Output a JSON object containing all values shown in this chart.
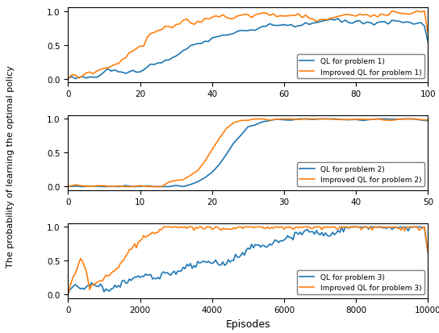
{
  "blue_color": "#1f77b4",
  "orange_color": "#ff7f0e",
  "ylabel": "The probability of learning the optimal policy",
  "xlabel": "Episodes",
  "subplot1": {
    "xlim": [
      0,
      100
    ],
    "xticks": [
      0,
      20,
      40,
      60,
      80,
      100
    ],
    "ylim": [
      -0.05,
      1.05
    ],
    "yticks": [
      0.0,
      0.5,
      1.0
    ],
    "legend1": "QL for problem 1)",
    "legend2": "Improved QL for problem 1)"
  },
  "subplot2": {
    "xlim": [
      0,
      50
    ],
    "xticks": [
      0,
      10,
      20,
      30,
      40,
      50
    ],
    "ylim": [
      -0.05,
      1.05
    ],
    "yticks": [
      0.0,
      0.5,
      1.0
    ],
    "legend1": "QL for problem 2)",
    "legend2": "Improved QL for problem 2)"
  },
  "subplot3": {
    "xlim": [
      0,
      10000
    ],
    "xticks": [
      0,
      2000,
      4000,
      6000,
      8000,
      10000
    ],
    "ylim": [
      -0.05,
      1.05
    ],
    "yticks": [
      0.0,
      0.5,
      1.0
    ],
    "legend1": "QL for problem 3)",
    "legend2": "Improved QL for problem 3)"
  },
  "linewidth": 1.2
}
